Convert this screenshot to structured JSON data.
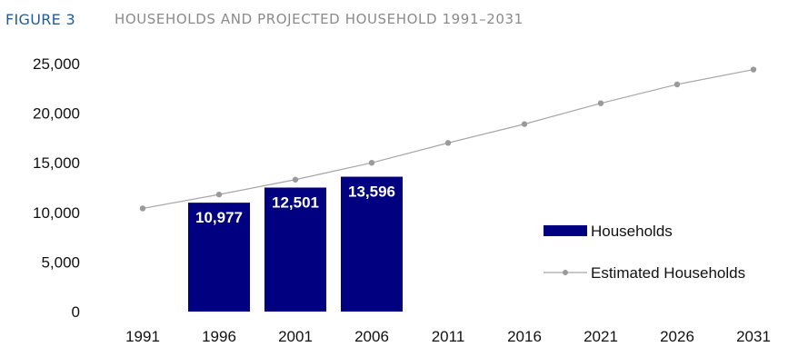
{
  "header": {
    "figure_label": "FIGURE 3",
    "title": "HOUSEHOLDS AND PROJECTED HOUSEHOLD 1991–2031"
  },
  "colors": {
    "bar": "#000080",
    "line": "#a6a6a6",
    "marker": "#9a9a9a",
    "figure_label": "#1f5c99",
    "title": "#8a8a8a"
  },
  "chart_data": {
    "type": "bar",
    "categories": [
      "1991",
      "1996",
      "2001",
      "2006",
      "2011",
      "2016",
      "2021",
      "2026",
      "2031"
    ],
    "ylim": [
      0,
      25000
    ],
    "yticks": [
      0,
      5000,
      10000,
      15000,
      20000,
      25000
    ],
    "ytick_labels": [
      "0",
      "5,000",
      "10,000",
      "15,000",
      "20,000",
      "25,000"
    ],
    "grid": false,
    "legend_position": "right",
    "series": [
      {
        "name": "Households",
        "type": "bar",
        "values": [
          null,
          10977,
          12501,
          13596,
          null,
          null,
          null,
          null,
          null
        ],
        "data_labels": [
          "",
          "10,977",
          "12,501",
          "13,596",
          "",
          "",
          "",
          "",
          ""
        ]
      },
      {
        "name": "Estimated Households",
        "type": "line",
        "values": [
          10400,
          11800,
          13300,
          15000,
          17000,
          18900,
          21000,
          22900,
          24400
        ]
      }
    ]
  }
}
